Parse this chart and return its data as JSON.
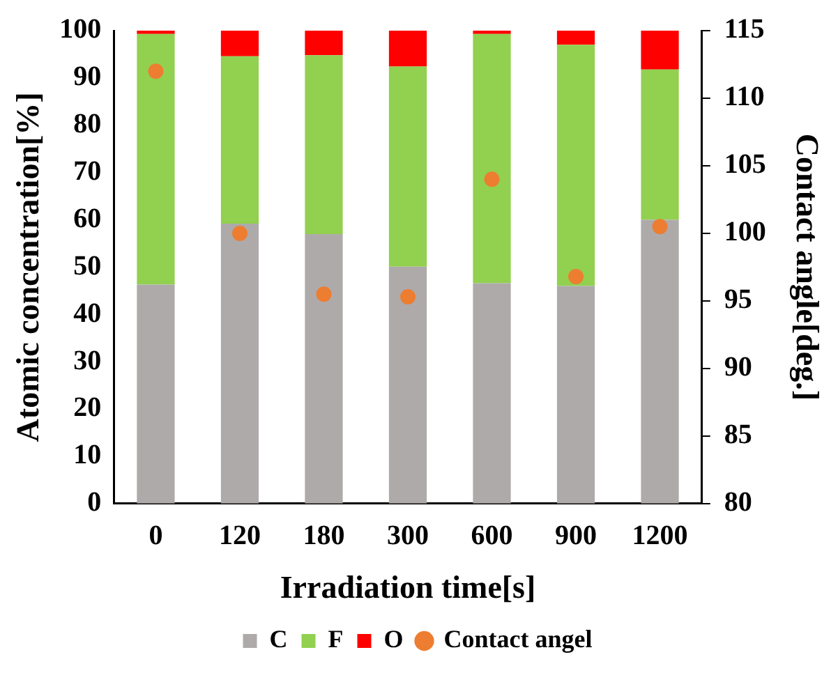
{
  "chart_data": {
    "type": "bar",
    "stacked": true,
    "xlabel": "Irradiation time[s]",
    "ylabel": "Atomic concentration[%]",
    "y2label": "Contact angle[deg.]",
    "categories": [
      "0",
      "120",
      "180",
      "300",
      "600",
      "900",
      "1200"
    ],
    "series": [
      {
        "name": "C",
        "color": "#aeaaaa",
        "values": [
          46.3,
          59.2,
          57.0,
          50.1,
          46.6,
          46.0,
          60.0
        ]
      },
      {
        "name": "F",
        "color": "#92d050",
        "values": [
          53.0,
          35.4,
          37.8,
          42.3,
          52.7,
          51.0,
          31.8
        ]
      },
      {
        "name": "O",
        "color": "#ff0000",
        "values": [
          0.7,
          5.4,
          5.2,
          7.6,
          0.7,
          3.0,
          8.2
        ]
      },
      {
        "name": "Contact angel",
        "type": "scatter",
        "axis": "y2",
        "color": "#ed7d31",
        "marker": "circle",
        "values": [
          112,
          100,
          95.5,
          95.3,
          104,
          96.8,
          100.5
        ]
      }
    ],
    "ylim": [
      0,
      100
    ],
    "yticks": [
      0,
      10,
      20,
      30,
      40,
      50,
      60,
      70,
      80,
      90,
      100
    ],
    "y2lim": [
      80,
      115
    ],
    "y2ticks": [
      80,
      85,
      90,
      95,
      100,
      105,
      110,
      115
    ],
    "grid": false,
    "legend": "bottom"
  }
}
